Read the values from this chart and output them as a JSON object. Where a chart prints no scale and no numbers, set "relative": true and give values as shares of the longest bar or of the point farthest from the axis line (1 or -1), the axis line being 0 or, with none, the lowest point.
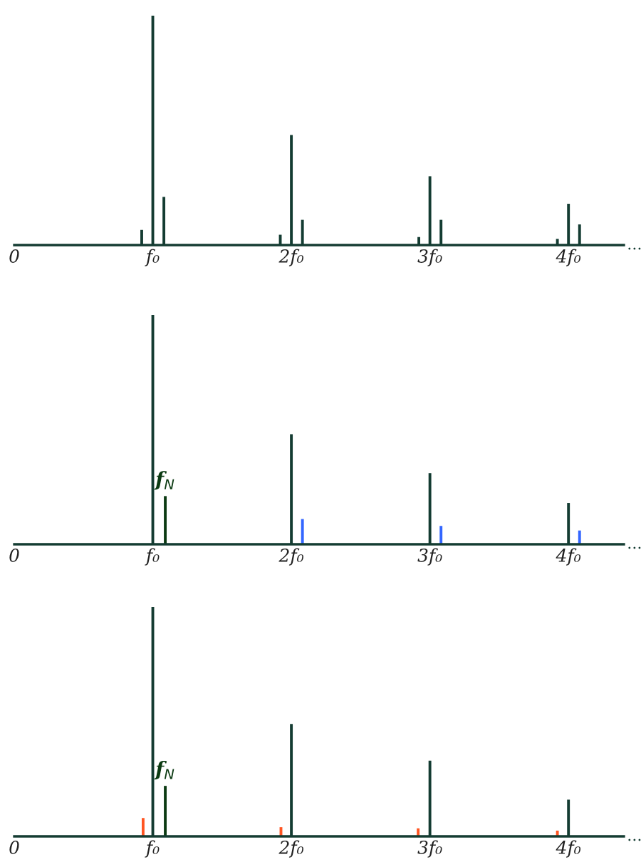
{
  "chart_data": [
    {
      "type": "bar",
      "relative": true,
      "tick_labels": "x",
      "legend": false,
      "grid": false,
      "xlim": [
        0,
        4.4
      ],
      "xticks": [
        {
          "value": 0,
          "label": "0"
        },
        {
          "value": 1,
          "label": "f₀"
        },
        {
          "value": 2,
          "label": "2f₀"
        },
        {
          "value": 3,
          "label": "3f₀"
        },
        {
          "value": 4,
          "label": "4f₀"
        }
      ],
      "series": [
        {
          "color": "#143c32",
          "x": [
            0.92,
            1,
            1.08,
            1.92,
            2,
            2.08,
            2.92,
            3,
            3.08,
            3.92,
            4,
            4.08
          ],
          "values": [
            0.066,
            1,
            0.21,
            0.045,
            0.48,
            0.11,
            0.035,
            0.3,
            0.11,
            0.027,
            0.18,
            0.09
          ]
        }
      ],
      "annotations": [
        "..."
      ]
    },
    {
      "type": "bar",
      "relative": true,
      "tick_labels": "x",
      "legend": false,
      "grid": false,
      "xlim": [
        0,
        4.4
      ],
      "xticks": [
        {
          "value": 0,
          "label": "0"
        },
        {
          "value": 1,
          "label": "f₀"
        },
        {
          "value": 2,
          "label": "2f₀"
        },
        {
          "value": 3,
          "label": "3f₀"
        },
        {
          "value": 4,
          "label": "4f₀"
        }
      ],
      "series": [
        {
          "color": "#143c32",
          "x": [
            1,
            2,
            3,
            4
          ],
          "values": [
            1,
            0.48,
            0.31,
            0.18
          ]
        },
        {
          "color": "#0b3a12",
          "x": [
            1.09
          ],
          "values": [
            0.21
          ]
        },
        {
          "color": "#3366ff",
          "x": [
            2.08,
            3.08,
            4.08
          ],
          "values": [
            0.11,
            0.08,
            0.06
          ]
        }
      ],
      "annotations": [
        {
          "text": "f$_{N}$",
          "x": 1.09,
          "y": 0.21
        },
        "..."
      ]
    },
    {
      "type": "bar",
      "relative": true,
      "tick_labels": "x",
      "legend": false,
      "grid": false,
      "xlim": [
        0,
        4.4
      ],
      "xticks": [
        {
          "value": 0,
          "label": "0"
        },
        {
          "value": 1,
          "label": "f₀"
        },
        {
          "value": 2,
          "label": "2f₀"
        },
        {
          "value": 3,
          "label": "3f₀"
        },
        {
          "value": 4,
          "label": "4f₀"
        }
      ],
      "series": [
        {
          "color": "#143c32",
          "x": [
            1,
            2,
            3,
            4
          ],
          "values": [
            1,
            0.49,
            0.33,
            0.16
          ]
        },
        {
          "color": "#0b3a12",
          "x": [
            1.09
          ],
          "values": [
            0.22
          ]
        },
        {
          "color": "#ff5522",
          "x": [
            0.93,
            1.925,
            2.915,
            3.92
          ],
          "values": [
            0.08,
            0.04,
            0.035,
            0.025
          ]
        }
      ],
      "annotations": [
        {
          "text": "f$_{N}$",
          "x": 1.09,
          "y": 0.22
        },
        "..."
      ]
    }
  ]
}
